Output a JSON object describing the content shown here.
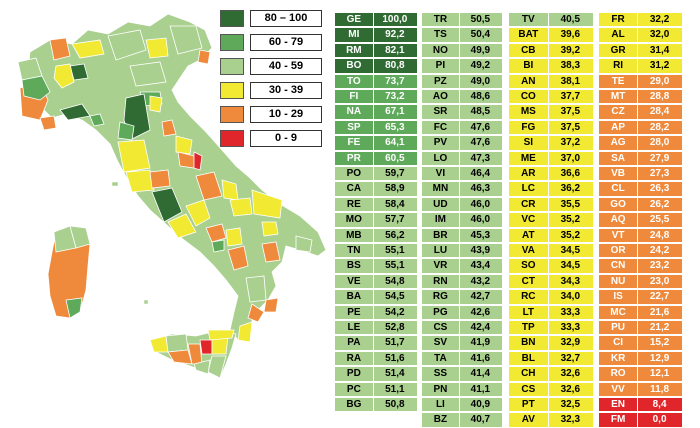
{
  "colors": {
    "80-100": "#2f6b33",
    "60-79": "#5ea95a",
    "40-59": "#a9d08e",
    "30-39": "#f2e933",
    "10-29": "#ef8a3c",
    "0-9": "#e0262b"
  },
  "legend": [
    {
      "label": "80 – 100",
      "color": "#2f6b33"
    },
    {
      "label": "60 - 79",
      "color": "#5ea95a"
    },
    {
      "label": "40 - 59",
      "color": "#a9d08e"
    },
    {
      "label": "30 - 39",
      "color": "#f2e933"
    },
    {
      "label": "10 - 29",
      "color": "#ef8a3c"
    },
    {
      "label": "0 - 9",
      "color": "#e0262b"
    }
  ],
  "columns": [
    [
      {
        "code": "GE",
        "value": "100,0",
        "color": "#2f6b33",
        "textColor": "#ffffff"
      },
      {
        "code": "MI",
        "value": "92,2",
        "color": "#2f6b33",
        "textColor": "#ffffff"
      },
      {
        "code": "RM",
        "value": "82,1",
        "color": "#2f6b33",
        "textColor": "#ffffff"
      },
      {
        "code": "BO",
        "value": "80,8",
        "color": "#2f6b33",
        "textColor": "#ffffff"
      },
      {
        "code": "TO",
        "value": "73,7",
        "color": "#5ea95a",
        "textColor": "#ffffff"
      },
      {
        "code": "FI",
        "value": "73,2",
        "color": "#5ea95a",
        "textColor": "#ffffff"
      },
      {
        "code": "NA",
        "value": "67,1",
        "color": "#5ea95a",
        "textColor": "#ffffff"
      },
      {
        "code": "SP",
        "value": "65,3",
        "color": "#5ea95a",
        "textColor": "#ffffff"
      },
      {
        "code": "FE",
        "value": "64,1",
        "color": "#5ea95a",
        "textColor": "#ffffff"
      },
      {
        "code": "PR",
        "value": "60,5",
        "color": "#5ea95a",
        "textColor": "#ffffff"
      },
      {
        "code": "PO",
        "value": "59,7",
        "color": "#a9d08e",
        "textColor": "#000000"
      },
      {
        "code": "CA",
        "value": "58,9",
        "color": "#a9d08e",
        "textColor": "#000000"
      },
      {
        "code": "RE",
        "value": "58,4",
        "color": "#a9d08e",
        "textColor": "#000000"
      },
      {
        "code": "MO",
        "value": "57,7",
        "color": "#a9d08e",
        "textColor": "#000000"
      },
      {
        "code": "MB",
        "value": "56,2",
        "color": "#a9d08e",
        "textColor": "#000000"
      },
      {
        "code": "TN",
        "value": "55,1",
        "color": "#a9d08e",
        "textColor": "#000000"
      },
      {
        "code": "BS",
        "value": "55,1",
        "color": "#a9d08e",
        "textColor": "#000000"
      },
      {
        "code": "VE",
        "value": "54,8",
        "color": "#a9d08e",
        "textColor": "#000000"
      },
      {
        "code": "BA",
        "value": "54,5",
        "color": "#a9d08e",
        "textColor": "#000000"
      },
      {
        "code": "PE",
        "value": "54,2",
        "color": "#a9d08e",
        "textColor": "#000000"
      },
      {
        "code": "LE",
        "value": "52,8",
        "color": "#a9d08e",
        "textColor": "#000000"
      },
      {
        "code": "PA",
        "value": "51,7",
        "color": "#a9d08e",
        "textColor": "#000000"
      },
      {
        "code": "RA",
        "value": "51,6",
        "color": "#a9d08e",
        "textColor": "#000000"
      },
      {
        "code": "PD",
        "value": "51,4",
        "color": "#a9d08e",
        "textColor": "#000000"
      },
      {
        "code": "PC",
        "value": "51,1",
        "color": "#a9d08e",
        "textColor": "#000000"
      },
      {
        "code": "BG",
        "value": "50,8",
        "color": "#a9d08e",
        "textColor": "#000000"
      }
    ],
    [
      {
        "code": "TR",
        "value": "50,5",
        "color": "#a9d08e",
        "textColor": "#000000"
      },
      {
        "code": "TS",
        "value": "50,4",
        "color": "#a9d08e",
        "textColor": "#000000"
      },
      {
        "code": "NO",
        "value": "49,9",
        "color": "#a9d08e",
        "textColor": "#000000"
      },
      {
        "code": "PI",
        "value": "49,2",
        "color": "#a9d08e",
        "textColor": "#000000"
      },
      {
        "code": "PZ",
        "value": "49,0",
        "color": "#a9d08e",
        "textColor": "#000000"
      },
      {
        "code": "AO",
        "value": "48,6",
        "color": "#a9d08e",
        "textColor": "#000000"
      },
      {
        "code": "SR",
        "value": "48,5",
        "color": "#a9d08e",
        "textColor": "#000000"
      },
      {
        "code": "FC",
        "value": "47,6",
        "color": "#a9d08e",
        "textColor": "#000000"
      },
      {
        "code": "PV",
        "value": "47,6",
        "color": "#a9d08e",
        "textColor": "#000000"
      },
      {
        "code": "LO",
        "value": "47,3",
        "color": "#a9d08e",
        "textColor": "#000000"
      },
      {
        "code": "VI",
        "value": "46,4",
        "color": "#a9d08e",
        "textColor": "#000000"
      },
      {
        "code": "MN",
        "value": "46,3",
        "color": "#a9d08e",
        "textColor": "#000000"
      },
      {
        "code": "UD",
        "value": "46,0",
        "color": "#a9d08e",
        "textColor": "#000000"
      },
      {
        "code": "IM",
        "value": "46,0",
        "color": "#a9d08e",
        "textColor": "#000000"
      },
      {
        "code": "BR",
        "value": "45,3",
        "color": "#a9d08e",
        "textColor": "#000000"
      },
      {
        "code": "LU",
        "value": "43,9",
        "color": "#a9d08e",
        "textColor": "#000000"
      },
      {
        "code": "VR",
        "value": "43,4",
        "color": "#a9d08e",
        "textColor": "#000000"
      },
      {
        "code": "RN",
        "value": "43,2",
        "color": "#a9d08e",
        "textColor": "#000000"
      },
      {
        "code": "RG",
        "value": "42,7",
        "color": "#a9d08e",
        "textColor": "#000000"
      },
      {
        "code": "PG",
        "value": "42,6",
        "color": "#a9d08e",
        "textColor": "#000000"
      },
      {
        "code": "CS",
        "value": "42,4",
        "color": "#a9d08e",
        "textColor": "#000000"
      },
      {
        "code": "SV",
        "value": "41,9",
        "color": "#a9d08e",
        "textColor": "#000000"
      },
      {
        "code": "TA",
        "value": "41,6",
        "color": "#a9d08e",
        "textColor": "#000000"
      },
      {
        "code": "SS",
        "value": "41,4",
        "color": "#a9d08e",
        "textColor": "#000000"
      },
      {
        "code": "PN",
        "value": "41,1",
        "color": "#a9d08e",
        "textColor": "#000000"
      },
      {
        "code": "LI",
        "value": "40,9",
        "color": "#a9d08e",
        "textColor": "#000000"
      },
      {
        "code": "BZ",
        "value": "40,7",
        "color": "#a9d08e",
        "textColor": "#000000"
      }
    ],
    [
      {
        "code": "TV",
        "value": "40,5",
        "color": "#a9d08e",
        "textColor": "#000000"
      },
      {
        "code": "BAT",
        "value": "39,6",
        "color": "#f2e933",
        "textColor": "#000000"
      },
      {
        "code": "CB",
        "value": "39,2",
        "color": "#f2e933",
        "textColor": "#000000"
      },
      {
        "code": "BI",
        "value": "38,3",
        "color": "#f2e933",
        "textColor": "#000000"
      },
      {
        "code": "AN",
        "value": "38,1",
        "color": "#f2e933",
        "textColor": "#000000"
      },
      {
        "code": "CO",
        "value": "37,7",
        "color": "#f2e933",
        "textColor": "#000000"
      },
      {
        "code": "MS",
        "value": "37,5",
        "color": "#f2e933",
        "textColor": "#000000"
      },
      {
        "code": "FG",
        "value": "37,5",
        "color": "#f2e933",
        "textColor": "#000000"
      },
      {
        "code": "SI",
        "value": "37,2",
        "color": "#f2e933",
        "textColor": "#000000"
      },
      {
        "code": "ME",
        "value": "37,0",
        "color": "#f2e933",
        "textColor": "#000000"
      },
      {
        "code": "AR",
        "value": "36,6",
        "color": "#f2e933",
        "textColor": "#000000"
      },
      {
        "code": "LC",
        "value": "36,2",
        "color": "#f2e933",
        "textColor": "#000000"
      },
      {
        "code": "CR",
        "value": "35,5",
        "color": "#f2e933",
        "textColor": "#000000"
      },
      {
        "code": "VC",
        "value": "35,2",
        "color": "#f2e933",
        "textColor": "#000000"
      },
      {
        "code": "AT",
        "value": "35,2",
        "color": "#f2e933",
        "textColor": "#000000"
      },
      {
        "code": "VA",
        "value": "34,5",
        "color": "#f2e933",
        "textColor": "#000000"
      },
      {
        "code": "SO",
        "value": "34,5",
        "color": "#f2e933",
        "textColor": "#000000"
      },
      {
        "code": "CT",
        "value": "34,3",
        "color": "#f2e933",
        "textColor": "#000000"
      },
      {
        "code": "RC",
        "value": "34,0",
        "color": "#f2e933",
        "textColor": "#000000"
      },
      {
        "code": "LT",
        "value": "33,3",
        "color": "#f2e933",
        "textColor": "#000000"
      },
      {
        "code": "TP",
        "value": "33,3",
        "color": "#f2e933",
        "textColor": "#000000"
      },
      {
        "code": "BN",
        "value": "32,9",
        "color": "#f2e933",
        "textColor": "#000000"
      },
      {
        "code": "BL",
        "value": "32,7",
        "color": "#f2e933",
        "textColor": "#000000"
      },
      {
        "code": "CH",
        "value": "32,6",
        "color": "#f2e933",
        "textColor": "#000000"
      },
      {
        "code": "CS",
        "value": "32,6",
        "color": "#f2e933",
        "textColor": "#000000"
      },
      {
        "code": "PT",
        "value": "32,5",
        "color": "#f2e933",
        "textColor": "#000000"
      },
      {
        "code": "AV",
        "value": "32,3",
        "color": "#f2e933",
        "textColor": "#000000"
      }
    ],
    [
      {
        "code": "FR",
        "value": "32,2",
        "color": "#f2e933",
        "textColor": "#000000"
      },
      {
        "code": "AL",
        "value": "32,0",
        "color": "#f2e933",
        "textColor": "#000000"
      },
      {
        "code": "GR",
        "value": "31,4",
        "color": "#f2e933",
        "textColor": "#000000"
      },
      {
        "code": "RI",
        "value": "31,2",
        "color": "#f2e933",
        "textColor": "#000000"
      },
      {
        "code": "TE",
        "value": "29,0",
        "color": "#ef8a3c",
        "textColor": "#ffffff"
      },
      {
        "code": "MT",
        "value": "28,8",
        "color": "#ef8a3c",
        "textColor": "#ffffff"
      },
      {
        "code": "CZ",
        "value": "28,4",
        "color": "#ef8a3c",
        "textColor": "#ffffff"
      },
      {
        "code": "AP",
        "value": "28,2",
        "color": "#ef8a3c",
        "textColor": "#ffffff"
      },
      {
        "code": "AG",
        "value": "28,0",
        "color": "#ef8a3c",
        "textColor": "#ffffff"
      },
      {
        "code": "SA",
        "value": "27,9",
        "color": "#ef8a3c",
        "textColor": "#ffffff"
      },
      {
        "code": "VB",
        "value": "27,3",
        "color": "#ef8a3c",
        "textColor": "#ffffff"
      },
      {
        "code": "CL",
        "value": "26,3",
        "color": "#ef8a3c",
        "textColor": "#ffffff"
      },
      {
        "code": "GO",
        "value": "26,2",
        "color": "#ef8a3c",
        "textColor": "#ffffff"
      },
      {
        "code": "AQ",
        "value": "25,5",
        "color": "#ef8a3c",
        "textColor": "#ffffff"
      },
      {
        "code": "VT",
        "value": "24,8",
        "color": "#ef8a3c",
        "textColor": "#ffffff"
      },
      {
        "code": "OR",
        "value": "24,2",
        "color": "#ef8a3c",
        "textColor": "#ffffff"
      },
      {
        "code": "CN",
        "value": "23,2",
        "color": "#ef8a3c",
        "textColor": "#ffffff"
      },
      {
        "code": "NU",
        "value": "23,0",
        "color": "#ef8a3c",
        "textColor": "#ffffff"
      },
      {
        "code": "IS",
        "value": "22,7",
        "color": "#ef8a3c",
        "textColor": "#ffffff"
      },
      {
        "code": "MC",
        "value": "21,6",
        "color": "#ef8a3c",
        "textColor": "#ffffff"
      },
      {
        "code": "PU",
        "value": "21,2",
        "color": "#ef8a3c",
        "textColor": "#ffffff"
      },
      {
        "code": "CI",
        "value": "15,2",
        "color": "#ef8a3c",
        "textColor": "#ffffff"
      },
      {
        "code": "KR",
        "value": "12,9",
        "color": "#ef8a3c",
        "textColor": "#ffffff"
      },
      {
        "code": "RO",
        "value": "12,1",
        "color": "#ef8a3c",
        "textColor": "#ffffff"
      },
      {
        "code": "VV",
        "value": "11,8",
        "color": "#ef8a3c",
        "textColor": "#ffffff"
      },
      {
        "code": "EN",
        "value": "8,4",
        "color": "#e0262b",
        "textColor": "#ffffff"
      },
      {
        "code": "FM",
        "value": "0,0",
        "color": "#e0262b",
        "textColor": "#ffffff"
      }
    ]
  ],
  "map": {
    "background_fill": "#a9d08e",
    "border_color": "#ffffff",
    "highlighted_provinces": [
      {
        "name": "Milano",
        "color": "#2f6b33"
      },
      {
        "name": "Genova",
        "color": "#2f6b33"
      },
      {
        "name": "Bologna",
        "color": "#2f6b33"
      },
      {
        "name": "Roma",
        "color": "#2f6b33"
      },
      {
        "name": "Enna",
        "color": "#e0262b"
      },
      {
        "name": "Fermo",
        "color": "#e0262b"
      }
    ]
  }
}
